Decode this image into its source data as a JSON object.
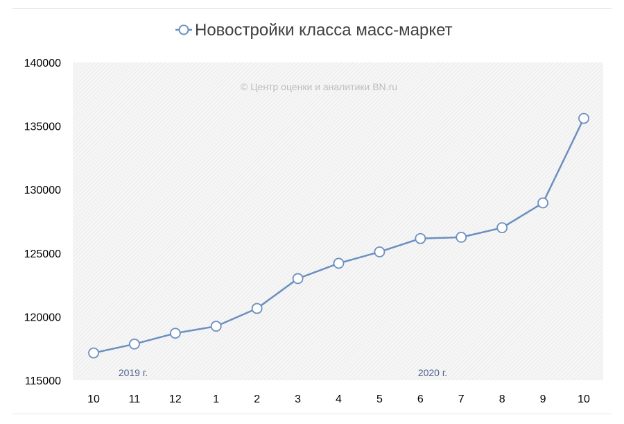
{
  "chart_data": {
    "type": "line",
    "title": "",
    "xlabel": "",
    "ylabel": "",
    "categories": [
      "10",
      "11",
      "12",
      "1",
      "2",
      "3",
      "4",
      "5",
      "6",
      "7",
      "8",
      "9",
      "10"
    ],
    "series": [
      {
        "name": "Новостройки класса масс-маркет",
        "values": [
          117150,
          117850,
          118700,
          119250,
          120650,
          123000,
          124200,
          125100,
          126150,
          126250,
          127000,
          128950,
          135600
        ]
      }
    ],
    "ylim": [
      115000,
      140000
    ],
    "yticks": [
      115000,
      120000,
      125000,
      130000,
      135000,
      140000
    ],
    "grid": false,
    "legend_position": "top",
    "annotations": {
      "watermark": "© Центр оценки и аналитики BN.ru",
      "year_2019": "2019 г.",
      "year_2020": "2020 г."
    },
    "colors": {
      "line": "#6b8fc0",
      "marker_fill": "#ffffff",
      "plot_background": "#f3f3f3"
    }
  }
}
